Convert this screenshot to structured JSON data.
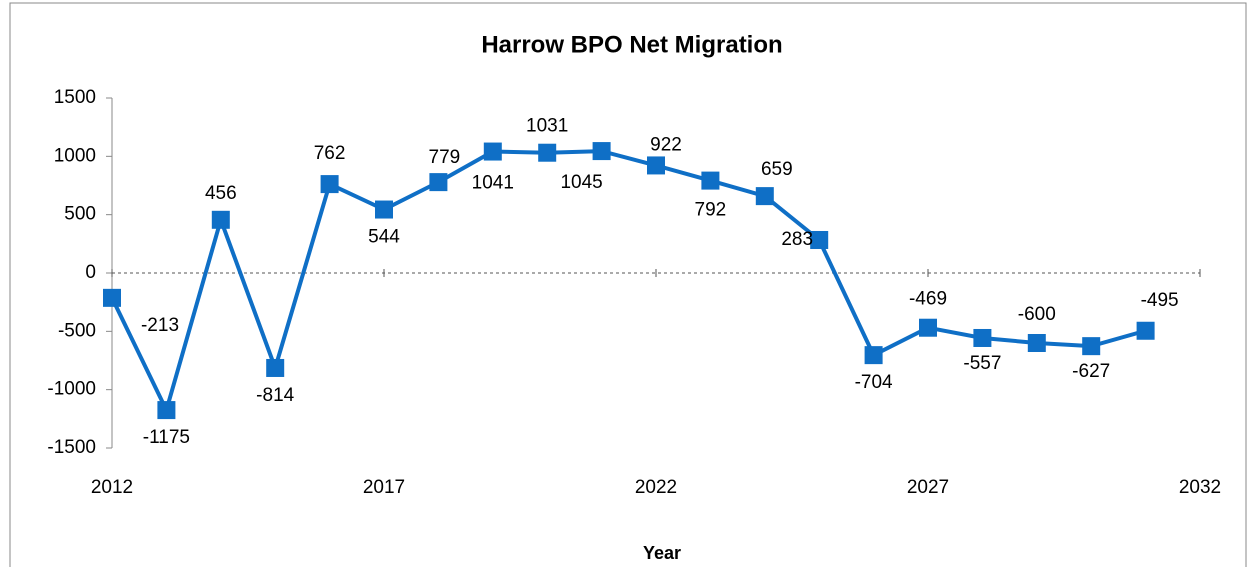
{
  "chart_data": {
    "type": "line",
    "title": "Harrow BPO Net Migration",
    "x_label": "Year",
    "x": [
      2012,
      2013,
      2014,
      2015,
      2016,
      2017,
      2018,
      2019,
      2020,
      2021,
      2022,
      2023,
      2024,
      2025,
      2026,
      2027,
      2028,
      2029,
      2030,
      2031
    ],
    "series": [
      {
        "name": "Net Migration",
        "color": "#0f6fc6",
        "values": [
          -213,
          -1175,
          456,
          -814,
          762,
          544,
          779,
          1041,
          1031,
          1045,
          922,
          792,
          659,
          283,
          -704,
          -469,
          -557,
          -600,
          -627,
          -495
        ]
      }
    ],
    "xlim": [
      2012,
      2032
    ],
    "xticks": [
      2012,
      2017,
      2022,
      2027,
      2032
    ],
    "ylim": [
      -1500,
      1500
    ],
    "yticks": [
      -1500,
      -1000,
      -500,
      0,
      500,
      1000,
      1500
    ],
    "zero_line": true
  }
}
